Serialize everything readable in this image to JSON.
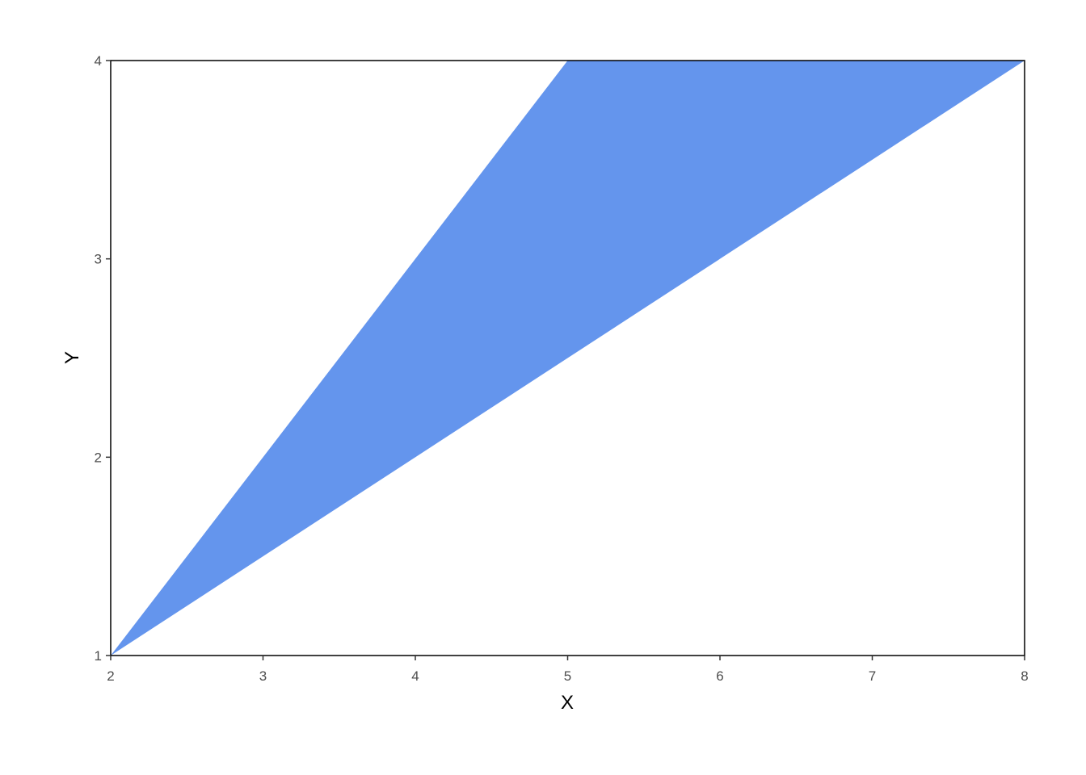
{
  "chart_data": {
    "type": "area",
    "title": "",
    "xlabel": "X",
    "ylabel": "Y",
    "xlim": [
      2,
      8
    ],
    "ylim": [
      1,
      4
    ],
    "x_ticks": [
      "2",
      "3",
      "4",
      "5",
      "6",
      "7",
      "8"
    ],
    "y_ticks": [
      "1",
      "2",
      "3",
      "4"
    ],
    "grid": false,
    "fill_color": "#6495ED",
    "x": [
      2,
      3,
      4,
      5,
      6,
      7,
      8
    ],
    "ymin": [
      1,
      1.5,
      2,
      2.5,
      3,
      3.5,
      4
    ],
    "ymax": [
      1,
      2,
      3,
      4,
      4,
      4,
      4
    ]
  }
}
